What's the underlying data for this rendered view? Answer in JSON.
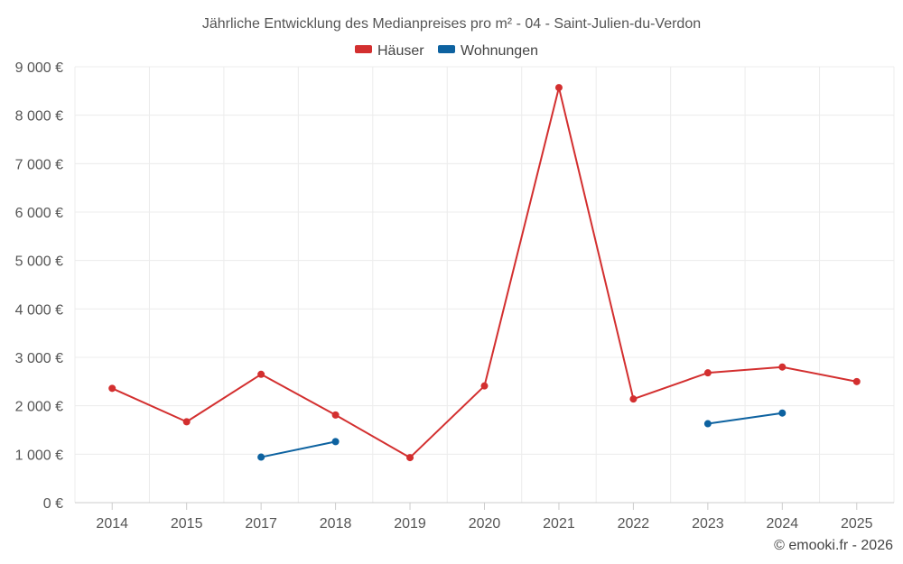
{
  "chart_data": {
    "type": "line",
    "title": "Jährliche Entwicklung des Medianpreises pro m² - 04 - Saint-Julien-du-Verdon",
    "categories": [
      "2014",
      "2015",
      "2017",
      "2018",
      "2019",
      "2020",
      "2021",
      "2022",
      "2023",
      "2024",
      "2025"
    ],
    "ylim": [
      0,
      9000
    ],
    "yticks": [
      0,
      1000,
      2000,
      3000,
      4000,
      5000,
      6000,
      7000,
      8000,
      9000
    ],
    "ytick_labels": [
      "0 €",
      "1 000 €",
      "2 000 €",
      "3 000 €",
      "4 000 €",
      "5 000 €",
      "6 000 €",
      "7 000 €",
      "8 000 €",
      "9 000 €"
    ],
    "grid": true,
    "legend_position": "top-center",
    "series": [
      {
        "name": "Häuser",
        "color": "#d32f2f",
        "values": [
          2360,
          1670,
          2650,
          1810,
          930,
          2410,
          8570,
          2140,
          2680,
          2800,
          2500
        ]
      },
      {
        "name": "Wohnungen",
        "color": "#0d62a0",
        "values": [
          null,
          null,
          940,
          1260,
          null,
          null,
          null,
          null,
          1630,
          1850,
          null
        ]
      }
    ]
  },
  "credit": "© emooki.fr - 2026"
}
